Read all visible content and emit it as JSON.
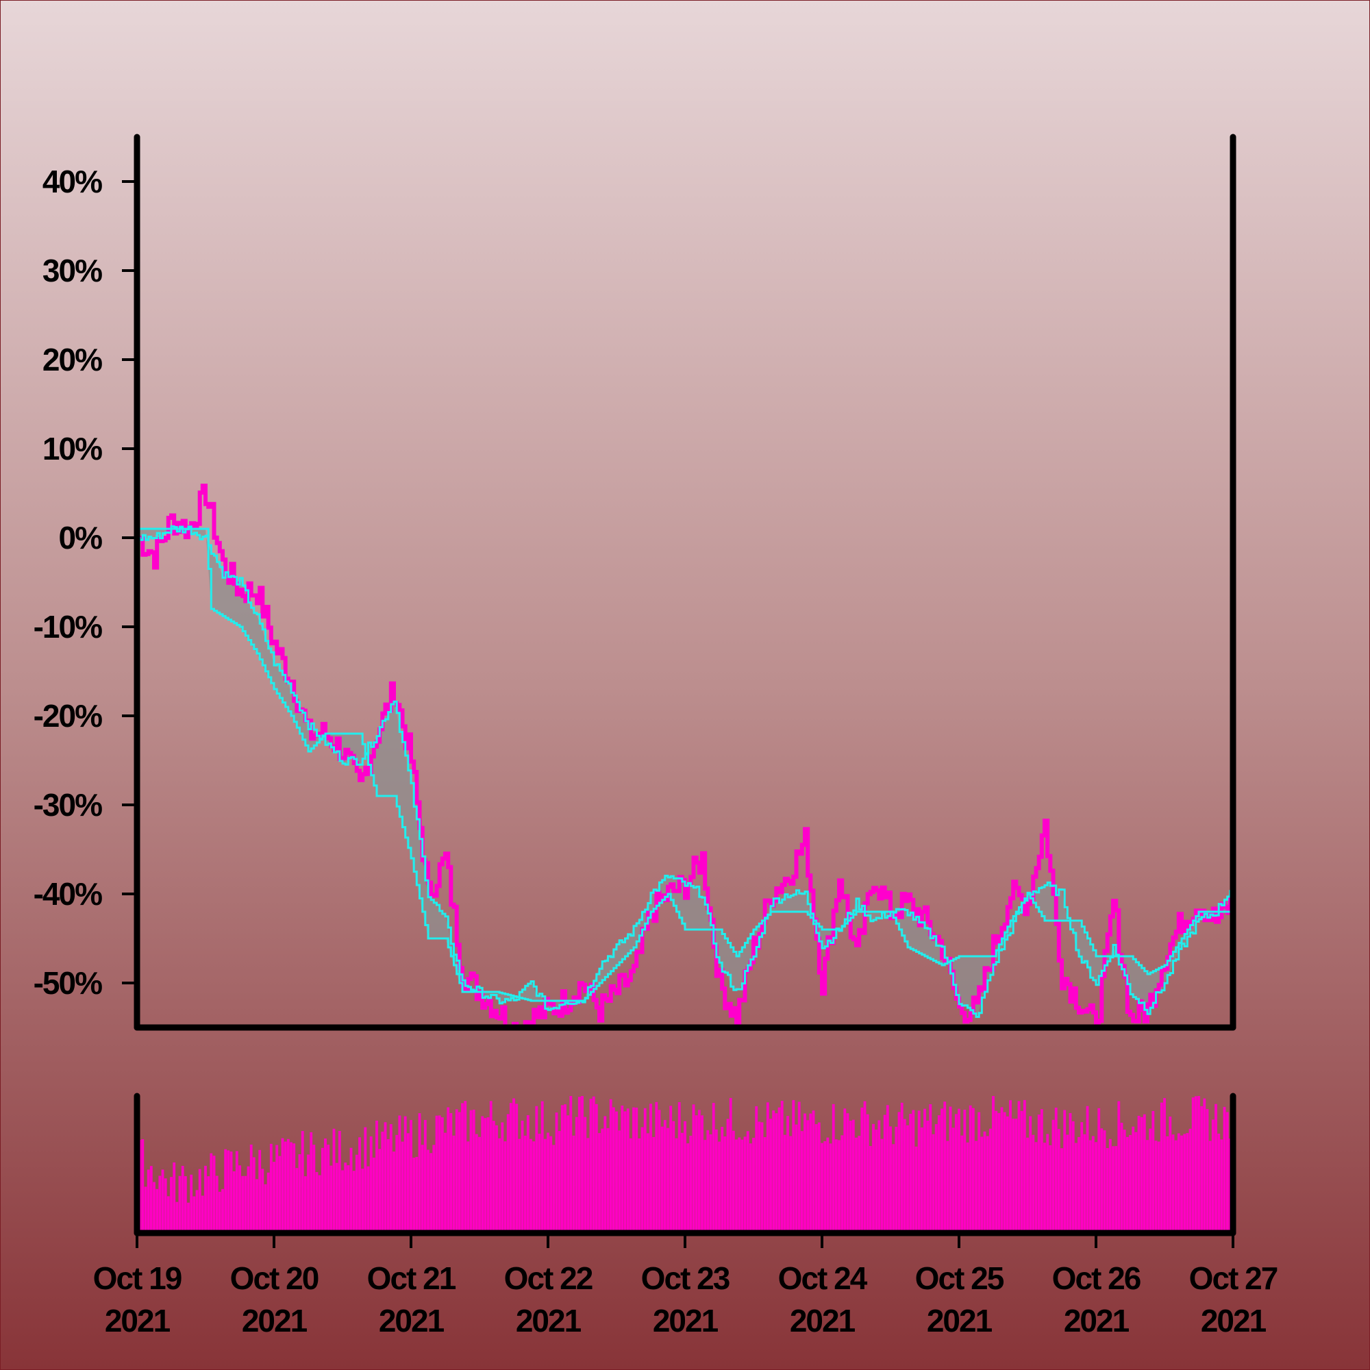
{
  "chart_data": [
    {
      "type": "line",
      "title": "",
      "xlabel": "",
      "ylabel": "",
      "x_ticks": [
        {
          "date": "2021-10-19",
          "label_line1": "Oct 19",
          "label_line2": "2021"
        },
        {
          "date": "2021-10-20",
          "label_line1": "Oct 20",
          "label_line2": "2021"
        },
        {
          "date": "2021-10-21",
          "label_line1": "Oct 21",
          "label_line2": "2021"
        },
        {
          "date": "2021-10-22",
          "label_line1": "Oct 22",
          "label_line2": "2021"
        },
        {
          "date": "2021-10-23",
          "label_line1": "Oct 23",
          "label_line2": "2021"
        },
        {
          "date": "2021-10-24",
          "label_line1": "Oct 24",
          "label_line2": "2021"
        },
        {
          "date": "2021-10-25",
          "label_line1": "Oct 25",
          "label_line2": "2021"
        },
        {
          "date": "2021-10-26",
          "label_line1": "Oct 26",
          "label_line2": "2021"
        },
        {
          "date": "2021-10-27",
          "label_line1": "Oct 27",
          "label_line2": "2021"
        }
      ],
      "y_ticks": [
        40,
        30,
        20,
        10,
        0,
        -10,
        -20,
        -30,
        -40,
        -50
      ],
      "y_tick_labels": [
        "40%",
        "30%",
        "20%",
        "10%",
        "0%",
        "-10%",
        "-20%",
        "-30%",
        "-40%",
        "-50%"
      ],
      "ylim": [
        -55,
        45
      ],
      "xlim": [
        "2021-10-19",
        "2021-10-27"
      ],
      "grid": false,
      "series": [
        {
          "color": "#ff00cc",
          "points": [
            [
              "2021-10-19T00:00",
              0
            ],
            [
              "2021-10-19T03:00",
              -2
            ],
            [
              "2021-10-19T06:00",
              2
            ],
            [
              "2021-10-19T09:00",
              1
            ],
            [
              "2021-10-19T12:00",
              5
            ],
            [
              "2021-10-19T15:00",
              -3
            ],
            [
              "2021-10-19T18:00",
              -6
            ],
            [
              "2021-10-19T21:00",
              -6
            ],
            [
              "2021-10-20T00:00",
              -12
            ],
            [
              "2021-10-20T03:00",
              -16
            ],
            [
              "2021-10-20T06:00",
              -22
            ],
            [
              "2021-10-20T09:00",
              -22
            ],
            [
              "2021-10-20T12:00",
              -24
            ],
            [
              "2021-10-20T15:00",
              -28
            ],
            [
              "2021-10-20T18:00",
              -22
            ],
            [
              "2021-10-20T21:00",
              -17
            ],
            [
              "2021-10-21T00:00",
              -25
            ],
            [
              "2021-10-21T03:00",
              -40
            ],
            [
              "2021-10-21T06:00",
              -36
            ],
            [
              "2021-10-21T09:00",
              -49
            ],
            [
              "2021-10-21T12:00",
              -51
            ],
            [
              "2021-10-21T15:00",
              -53
            ],
            [
              "2021-10-21T18:00",
              -55
            ],
            [
              "2021-10-21T21:00",
              -54
            ],
            [
              "2021-10-22T00:00",
              -53
            ],
            [
              "2021-10-22T03:00",
              -52
            ],
            [
              "2021-10-22T06:00",
              -50
            ],
            [
              "2021-10-22T09:00",
              -53
            ],
            [
              "2021-10-22T12:00",
              -51
            ],
            [
              "2021-10-22T15:00",
              -49
            ],
            [
              "2021-10-22T18:00",
              -42
            ],
            [
              "2021-10-22T21:00",
              -40
            ],
            [
              "2021-10-23T00:00",
              -39
            ],
            [
              "2021-10-23T03:00",
              -36
            ],
            [
              "2021-10-23T06:00",
              -50
            ],
            [
              "2021-10-23T09:00",
              -54
            ],
            [
              "2021-10-23T12:00",
              -46
            ],
            [
              "2021-10-23T15:00",
              -40
            ],
            [
              "2021-10-23T18:00",
              -38
            ],
            [
              "2021-10-23T21:00",
              -34
            ],
            [
              "2021-10-24T00:00",
              -50
            ],
            [
              "2021-10-24T03:00",
              -38
            ],
            [
              "2021-10-24T06:00",
              -47
            ],
            [
              "2021-10-24T09:00",
              -38
            ],
            [
              "2021-10-24T12:00",
              -42
            ],
            [
              "2021-10-24T15:00",
              -41
            ],
            [
              "2021-10-24T18:00",
              -43
            ],
            [
              "2021-10-24T21:00",
              -46
            ],
            [
              "2021-10-25T00:00",
              -53
            ],
            [
              "2021-10-25T03:00",
              -53
            ],
            [
              "2021-10-25T06:00",
              -46
            ],
            [
              "2021-10-25T09:00",
              -40
            ],
            [
              "2021-10-25T12:00",
              -41
            ],
            [
              "2021-10-25T15:00",
              -32
            ],
            [
              "2021-10-25T18:00",
              -49
            ],
            [
              "2021-10-25T21:00",
              -52
            ],
            [
              "2021-10-26T00:00",
              -55
            ],
            [
              "2021-10-26T03:00",
              -41
            ],
            [
              "2021-10-26T06:00",
              -54
            ],
            [
              "2021-10-26T09:00",
              -53
            ],
            [
              "2021-10-26T12:00",
              -47
            ],
            [
              "2021-10-26T15:00",
              -43
            ],
            [
              "2021-10-26T18:00",
              -41
            ],
            [
              "2021-10-26T21:00",
              -43
            ],
            [
              "2021-10-27T00:00",
              -41
            ]
          ]
        },
        {
          "color": "#22eeee",
          "points": [
            [
              "2021-10-19T00:00",
              0
            ],
            [
              "2021-10-19T03:00",
              0
            ],
            [
              "2021-10-19T06:00",
              1
            ],
            [
              "2021-10-19T09:00",
              1
            ],
            [
              "2021-10-19T12:00",
              0
            ],
            [
              "2021-10-19T15:00",
              -4
            ],
            [
              "2021-10-19T18:00",
              -5
            ],
            [
              "2021-10-19T21:00",
              -9
            ],
            [
              "2021-10-20T00:00",
              -14
            ],
            [
              "2021-10-20T03:00",
              -17
            ],
            [
              "2021-10-20T06:00",
              -21
            ],
            [
              "2021-10-20T09:00",
              -23
            ],
            [
              "2021-10-20T12:00",
              -25
            ],
            [
              "2021-10-20T15:00",
              -25
            ],
            [
              "2021-10-20T18:00",
              -22
            ],
            [
              "2021-10-20T21:00",
              -18
            ],
            [
              "2021-10-21T00:00",
              -28
            ],
            [
              "2021-10-21T03:00",
              -40
            ],
            [
              "2021-10-21T06:00",
              -43
            ],
            [
              "2021-10-21T09:00",
              -50
            ],
            [
              "2021-10-21T12:00",
              -51
            ],
            [
              "2021-10-21T15:00",
              -52
            ],
            [
              "2021-10-21T18:00",
              -52
            ],
            [
              "2021-10-21T21:00",
              -50
            ],
            [
              "2021-10-22T00:00",
              -53
            ],
            [
              "2021-10-22T03:00",
              -52
            ],
            [
              "2021-10-22T06:00",
              -52
            ],
            [
              "2021-10-22T09:00",
              -48
            ],
            [
              "2021-10-22T12:00",
              -46
            ],
            [
              "2021-10-22T15:00",
              -44
            ],
            [
              "2021-10-22T18:00",
              -40
            ],
            [
              "2021-10-22T21:00",
              -38
            ],
            [
              "2021-10-23T00:00",
              -39
            ],
            [
              "2021-10-23T03:00",
              -40
            ],
            [
              "2021-10-23T06:00",
              -48
            ],
            [
              "2021-10-23T09:00",
              -51
            ],
            [
              "2021-10-23T12:00",
              -47
            ],
            [
              "2021-10-23T15:00",
              -41
            ],
            [
              "2021-10-23T18:00",
              -40
            ],
            [
              "2021-10-23T21:00",
              -40
            ],
            [
              "2021-10-24T00:00",
              -46
            ],
            [
              "2021-10-24T03:00",
              -44
            ],
            [
              "2021-10-24T06:00",
              -41
            ],
            [
              "2021-10-24T09:00",
              -43
            ],
            [
              "2021-10-24T12:00",
              -42
            ],
            [
              "2021-10-24T15:00",
              -42
            ],
            [
              "2021-10-24T18:00",
              -44
            ],
            [
              "2021-10-24T21:00",
              -46
            ],
            [
              "2021-10-25T00:00",
              -52
            ],
            [
              "2021-10-25T03:00",
              -54
            ],
            [
              "2021-10-25T06:00",
              -48
            ],
            [
              "2021-10-25T09:00",
              -44
            ],
            [
              "2021-10-25T12:00",
              -40
            ],
            [
              "2021-10-25T15:00",
              -39
            ],
            [
              "2021-10-25T18:00",
              -40
            ],
            [
              "2021-10-25T21:00",
              -47
            ],
            [
              "2021-10-26T00:00",
              -50
            ],
            [
              "2021-10-26T03:00",
              -46
            ],
            [
              "2021-10-26T06:00",
              -51
            ],
            [
              "2021-10-26T09:00",
              -53
            ],
            [
              "2021-10-26T12:00",
              -50
            ],
            [
              "2021-10-26T15:00",
              -46
            ],
            [
              "2021-10-26T18:00",
              -43
            ],
            [
              "2021-10-26T21:00",
              -42
            ],
            [
              "2021-10-27T00:00",
              -39
            ]
          ]
        },
        {
          "color": "#22eeee",
          "points": [
            [
              "2021-10-19T00:00",
              1
            ],
            [
              "2021-10-19T06:00",
              1
            ],
            [
              "2021-10-19T12:00",
              1
            ],
            [
              "2021-10-19T13:00",
              -8
            ],
            [
              "2021-10-19T18:00",
              -10
            ],
            [
              "2021-10-19T21:00",
              -13
            ],
            [
              "2021-10-20T00:00",
              -17
            ],
            [
              "2021-10-20T03:00",
              -20
            ],
            [
              "2021-10-20T06:00",
              -24
            ],
            [
              "2021-10-20T09:00",
              -22
            ],
            [
              "2021-10-20T15:00",
              -22
            ],
            [
              "2021-10-20T18:00",
              -29
            ],
            [
              "2021-10-20T21:00",
              -29
            ],
            [
              "2021-10-21T00:00",
              -36
            ],
            [
              "2021-10-21T03:00",
              -45
            ],
            [
              "2021-10-21T06:00",
              -45
            ],
            [
              "2021-10-21T09:00",
              -51
            ],
            [
              "2021-10-21T15:00",
              -51
            ],
            [
              "2021-10-21T21:00",
              -52
            ],
            [
              "2021-10-22T03:00",
              -52
            ],
            [
              "2021-10-22T06:00",
              -52
            ],
            [
              "2021-10-22T09:00",
              -50
            ],
            [
              "2021-10-22T12:00",
              -48
            ],
            [
              "2021-10-22T15:00",
              -46
            ],
            [
              "2021-10-22T18:00",
              -42
            ],
            [
              "2021-10-22T21:00",
              -40
            ],
            [
              "2021-10-23T00:00",
              -44
            ],
            [
              "2021-10-23T06:00",
              -44
            ],
            [
              "2021-10-23T09:00",
              -47
            ],
            [
              "2021-10-23T12:00",
              -44
            ],
            [
              "2021-10-23T15:00",
              -42
            ],
            [
              "2021-10-23T21:00",
              -42
            ],
            [
              "2021-10-24T00:00",
              -44
            ],
            [
              "2021-10-24T03:00",
              -44
            ],
            [
              "2021-10-24T06:00",
              -42
            ],
            [
              "2021-10-24T12:00",
              -42
            ],
            [
              "2021-10-24T15:00",
              -46
            ],
            [
              "2021-10-24T21:00",
              -48
            ],
            [
              "2021-10-25T00:00",
              -47
            ],
            [
              "2021-10-25T06:00",
              -47
            ],
            [
              "2021-10-25T09:00",
              -43
            ],
            [
              "2021-10-25T12:00",
              -40
            ],
            [
              "2021-10-25T15:00",
              -43
            ],
            [
              "2021-10-25T21:00",
              -43
            ],
            [
              "2021-10-26T00:00",
              -47
            ],
            [
              "2021-10-26T06:00",
              -47
            ],
            [
              "2021-10-26T09:00",
              -49
            ],
            [
              "2021-10-26T12:00",
              -48
            ],
            [
              "2021-10-26T15:00",
              -45
            ],
            [
              "2021-10-26T18:00",
              -42
            ],
            [
              "2021-10-26T21:00",
              -42
            ],
            [
              "2021-10-27T00:00",
              -42
            ]
          ]
        }
      ]
    },
    {
      "type": "bar",
      "title": "",
      "xlabel": "",
      "ylabel": "",
      "xlim": [
        "2021-10-19",
        "2021-10-27"
      ],
      "ylim": [
        0,
        1
      ],
      "grid": false,
      "bar_color": "#ff00c4",
      "volume_profile": [
        [
          "2021-10-19T00:00",
          0.55
        ],
        [
          "2021-10-19T06:00",
          0.35
        ],
        [
          "2021-10-19T12:00",
          0.4
        ],
        [
          "2021-10-19T18:00",
          0.5
        ],
        [
          "2021-10-20T00:00",
          0.52
        ],
        [
          "2021-10-20T06:00",
          0.58
        ],
        [
          "2021-10-20T12:00",
          0.6
        ],
        [
          "2021-10-20T18:00",
          0.65
        ],
        [
          "2021-10-21T00:00",
          0.7
        ],
        [
          "2021-10-21T06:00",
          0.78
        ],
        [
          "2021-10-21T12:00",
          0.82
        ],
        [
          "2021-10-21T18:00",
          0.84
        ],
        [
          "2021-10-22T00:00",
          0.8
        ],
        [
          "2021-10-22T06:00",
          0.86
        ],
        [
          "2021-10-22T12:00",
          0.84
        ],
        [
          "2021-10-22T18:00",
          0.8
        ],
        [
          "2021-10-23T00:00",
          0.82
        ],
        [
          "2021-10-23T06:00",
          0.83
        ],
        [
          "2021-10-23T12:00",
          0.8
        ],
        [
          "2021-10-23T18:00",
          0.8
        ],
        [
          "2021-10-24T00:00",
          0.8
        ],
        [
          "2021-10-24T06:00",
          0.82
        ],
        [
          "2021-10-24T12:00",
          0.78
        ],
        [
          "2021-10-24T18:00",
          0.8
        ],
        [
          "2021-10-25T00:00",
          0.82
        ],
        [
          "2021-10-25T06:00",
          0.84
        ],
        [
          "2021-10-25T12:00",
          0.8
        ],
        [
          "2021-10-25T18:00",
          0.78
        ],
        [
          "2021-10-26T00:00",
          0.78
        ],
        [
          "2021-10-26T06:00",
          0.8
        ],
        [
          "2021-10-26T12:00",
          0.82
        ],
        [
          "2021-10-26T18:00",
          0.84
        ],
        [
          "2021-10-27T00:00",
          0.82
        ]
      ]
    }
  ]
}
